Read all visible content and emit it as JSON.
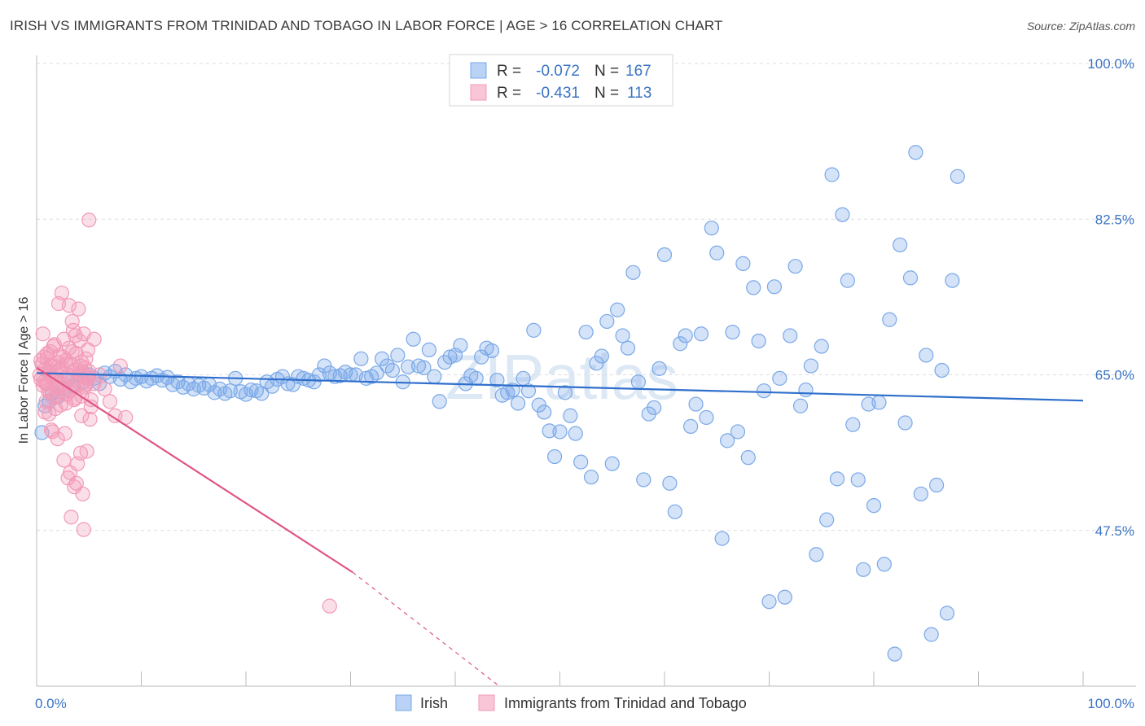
{
  "title": "IRISH VS IMMIGRANTS FROM TRINIDAD AND TOBAGO IN LABOR FORCE | AGE > 16 CORRELATION CHART",
  "source": "Source: ZipAtlas.com",
  "watermark": "ZIPatlas",
  "chart_data": {
    "type": "scatter",
    "ylabel": "In Labor Force | Age > 16",
    "xlim": [
      0,
      100
    ],
    "ylim": [
      30,
      100
    ],
    "x_tick_labels": {
      "min": "0.0%",
      "max": "100.0%"
    },
    "y_ticks": [
      {
        "value": 100.0,
        "label": "100.0%"
      },
      {
        "value": 82.5,
        "label": "82.5%"
      },
      {
        "value": 65.0,
        "label": "65.0%"
      },
      {
        "value": 47.5,
        "label": "47.5%"
      }
    ],
    "grid": "horizontal-dashed",
    "legend_position": "top-center",
    "stats": [
      {
        "r_label": "R =",
        "r": "-0.072",
        "n_label": "N =",
        "n": "167"
      },
      {
        "r_label": "R =",
        "r": "-0.431",
        "n_label": "N =",
        "n": "113"
      }
    ],
    "series": [
      {
        "name": "Irish",
        "color": "#7aa8e8",
        "line_color": "#2f6fcc",
        "trend": {
          "x0": 0,
          "y0": 65.2,
          "x1": 100,
          "y1": 62.1,
          "dash_from": null
        },
        "points": [
          [
            0.5,
            58.5
          ],
          [
            0.8,
            61.5
          ],
          [
            1.2,
            62.0
          ],
          [
            1.5,
            63.0
          ],
          [
            2.0,
            62.5
          ],
          [
            2.5,
            63.5
          ],
          [
            3.0,
            64.5
          ],
          [
            3.5,
            63.8
          ],
          [
            4.0,
            64.8
          ],
          [
            4.5,
            64.2
          ],
          [
            5.0,
            65.0
          ],
          [
            5.5,
            64.6
          ],
          [
            6.0,
            64.0
          ],
          [
            6.5,
            65.2
          ],
          [
            7.0,
            64.8
          ],
          [
            7.5,
            65.4
          ],
          [
            8.0,
            64.5
          ],
          [
            8.5,
            65.0
          ],
          [
            9.0,
            64.2
          ],
          [
            9.5,
            64.6
          ],
          [
            10.0,
            64.8
          ],
          [
            10.5,
            64.3
          ],
          [
            11.0,
            64.6
          ],
          [
            11.5,
            64.9
          ],
          [
            12.0,
            64.4
          ],
          [
            12.5,
            64.7
          ],
          [
            13.0,
            63.9
          ],
          [
            13.5,
            64.2
          ],
          [
            14.0,
            63.6
          ],
          [
            14.5,
            64.0
          ],
          [
            15.0,
            63.4
          ],
          [
            15.5,
            63.8
          ],
          [
            16.0,
            63.5
          ],
          [
            16.5,
            63.9
          ],
          [
            17.0,
            63.0
          ],
          [
            17.5,
            63.4
          ],
          [
            18.0,
            62.9
          ],
          [
            18.5,
            63.2
          ],
          [
            19.0,
            64.6
          ],
          [
            19.5,
            63.1
          ],
          [
            20.0,
            62.8
          ],
          [
            20.5,
            63.3
          ],
          [
            21.0,
            63.2
          ],
          [
            21.5,
            62.9
          ],
          [
            22.0,
            64.2
          ],
          [
            22.5,
            63.7
          ],
          [
            23.0,
            64.5
          ],
          [
            23.5,
            64.8
          ],
          [
            24.0,
            64.0
          ],
          [
            24.5,
            63.9
          ],
          [
            25.0,
            64.8
          ],
          [
            25.5,
            64.6
          ],
          [
            26.0,
            64.4
          ],
          [
            26.5,
            64.2
          ],
          [
            27.0,
            65.0
          ],
          [
            27.5,
            66.0
          ],
          [
            28.0,
            65.2
          ],
          [
            28.5,
            64.8
          ],
          [
            29.0,
            64.9
          ],
          [
            29.5,
            65.3
          ],
          [
            30.0,
            65.0
          ],
          [
            30.5,
            65.0
          ],
          [
            31.0,
            66.8
          ],
          [
            31.5,
            64.6
          ],
          [
            32.0,
            64.8
          ],
          [
            32.5,
            65.2
          ],
          [
            33.0,
            66.8
          ],
          [
            33.5,
            66.0
          ],
          [
            34.0,
            65.5
          ],
          [
            34.5,
            67.2
          ],
          [
            35.0,
            64.2
          ],
          [
            35.5,
            65.9
          ],
          [
            36.0,
            69.0
          ],
          [
            36.5,
            66.0
          ],
          [
            37.0,
            65.8
          ],
          [
            37.5,
            67.8
          ],
          [
            38.0,
            64.8
          ],
          [
            38.5,
            62.0
          ],
          [
            39.0,
            66.4
          ],
          [
            39.5,
            67.0
          ],
          [
            40.0,
            67.2
          ],
          [
            40.5,
            68.3
          ],
          [
            41.0,
            64.0
          ],
          [
            41.5,
            64.9
          ],
          [
            42.0,
            64.6
          ],
          [
            42.5,
            67.0
          ],
          [
            43.0,
            68.0
          ],
          [
            43.5,
            67.7
          ],
          [
            44.0,
            64.4
          ],
          [
            44.5,
            62.7
          ],
          [
            45.0,
            63.0
          ],
          [
            45.5,
            63.3
          ],
          [
            46.0,
            61.8
          ],
          [
            46.5,
            64.6
          ],
          [
            47.0,
            63.2
          ],
          [
            47.5,
            70.0
          ],
          [
            48.0,
            61.6
          ],
          [
            48.5,
            60.8
          ],
          [
            49.0,
            58.7
          ],
          [
            49.5,
            55.8
          ],
          [
            50.0,
            58.6
          ],
          [
            50.5,
            63.0
          ],
          [
            51.0,
            60.4
          ],
          [
            51.5,
            58.4
          ],
          [
            52.0,
            55.2
          ],
          [
            52.5,
            69.8
          ],
          [
            53.0,
            53.5
          ],
          [
            53.5,
            66.3
          ],
          [
            54.0,
            67.1
          ],
          [
            54.5,
            71.0
          ],
          [
            55.0,
            55.0
          ],
          [
            55.5,
            72.3
          ],
          [
            56.0,
            69.4
          ],
          [
            56.5,
            68.0
          ],
          [
            57.0,
            76.5
          ],
          [
            57.5,
            64.2
          ],
          [
            58.0,
            53.2
          ],
          [
            58.5,
            60.6
          ],
          [
            59.0,
            61.3
          ],
          [
            59.5,
            65.7
          ],
          [
            60.0,
            78.5
          ],
          [
            60.5,
            52.8
          ],
          [
            61.0,
            49.6
          ],
          [
            61.5,
            68.5
          ],
          [
            62.0,
            69.4
          ],
          [
            62.5,
            59.2
          ],
          [
            63.0,
            61.7
          ],
          [
            63.5,
            69.6
          ],
          [
            64.0,
            60.2
          ],
          [
            64.5,
            81.5
          ],
          [
            65.0,
            78.7
          ],
          [
            65.5,
            46.6
          ],
          [
            66.0,
            57.6
          ],
          [
            66.5,
            69.8
          ],
          [
            67.0,
            58.6
          ],
          [
            67.5,
            77.5
          ],
          [
            68.0,
            55.7
          ],
          [
            68.5,
            74.8
          ],
          [
            69.0,
            68.8
          ],
          [
            69.5,
            63.2
          ],
          [
            70.0,
            39.5
          ],
          [
            70.5,
            74.9
          ],
          [
            71.0,
            64.6
          ],
          [
            71.5,
            40.0
          ],
          [
            72.0,
            69.4
          ],
          [
            72.5,
            77.2
          ],
          [
            73.0,
            61.5
          ],
          [
            73.5,
            63.3
          ],
          [
            74.0,
            66.0
          ],
          [
            74.5,
            44.8
          ],
          [
            75.0,
            68.2
          ],
          [
            75.5,
            48.7
          ],
          [
            76.0,
            87.5
          ],
          [
            76.5,
            53.3
          ],
          [
            77.0,
            83.0
          ],
          [
            77.5,
            75.6
          ],
          [
            78.0,
            59.4
          ],
          [
            78.5,
            53.2
          ],
          [
            79.0,
            43.1
          ],
          [
            79.5,
            61.7
          ],
          [
            80.0,
            50.3
          ],
          [
            80.5,
            61.9
          ],
          [
            81.0,
            43.7
          ],
          [
            81.5,
            71.2
          ],
          [
            82.0,
            33.6
          ],
          [
            82.5,
            79.6
          ],
          [
            83.0,
            59.6
          ],
          [
            83.5,
            75.9
          ],
          [
            84.0,
            90.0
          ],
          [
            84.5,
            51.6
          ],
          [
            85.0,
            67.2
          ],
          [
            85.5,
            35.8
          ],
          [
            86.0,
            52.6
          ],
          [
            86.5,
            65.5
          ],
          [
            87.0,
            38.2
          ],
          [
            87.5,
            75.6
          ],
          [
            88.0,
            87.3
          ]
        ]
      },
      {
        "name": "Immigrants from Trinidad and Tobago",
        "color": "#f29ab8",
        "line_color": "#e05585",
        "trend": {
          "x0": 0,
          "y0": 65.8,
          "x1": 30.2,
          "y1": 42.8,
          "dash_to_x": 44.2,
          "dash_to_y": 30.0
        },
        "points": [
          [
            0.3,
            65.0
          ],
          [
            0.4,
            64.5
          ],
          [
            0.5,
            66.2
          ],
          [
            0.6,
            63.8
          ],
          [
            0.7,
            67.0
          ],
          [
            0.8,
            65.6
          ],
          [
            0.9,
            64.0
          ],
          [
            1.0,
            66.8
          ],
          [
            1.1,
            63.2
          ],
          [
            1.2,
            65.2
          ],
          [
            1.3,
            67.6
          ],
          [
            1.4,
            64.8
          ],
          [
            1.5,
            66.0
          ],
          [
            1.6,
            62.4
          ],
          [
            1.7,
            68.4
          ],
          [
            1.8,
            65.4
          ],
          [
            1.9,
            63.6
          ],
          [
            2.0,
            66.4
          ],
          [
            2.1,
            64.2
          ],
          [
            2.2,
            67.2
          ],
          [
            2.3,
            61.6
          ],
          [
            2.4,
            65.8
          ],
          [
            2.5,
            63.0
          ],
          [
            2.6,
            69.0
          ],
          [
            2.7,
            64.6
          ],
          [
            2.8,
            66.6
          ],
          [
            2.9,
            62.8
          ],
          [
            3.0,
            65.0
          ],
          [
            3.1,
            68.0
          ],
          [
            3.2,
            63.4
          ],
          [
            3.3,
            66.2
          ],
          [
            3.4,
            64.4
          ],
          [
            3.5,
            70.0
          ],
          [
            3.6,
            62.2
          ],
          [
            3.7,
            65.6
          ],
          [
            3.8,
            67.4
          ],
          [
            3.9,
            63.8
          ],
          [
            4.0,
            64.8
          ],
          [
            4.1,
            68.8
          ],
          [
            4.2,
            66.0
          ],
          [
            4.3,
            62.6
          ],
          [
            4.4,
            65.2
          ],
          [
            4.5,
            69.6
          ],
          [
            4.6,
            63.6
          ],
          [
            4.7,
            66.8
          ],
          [
            4.8,
            64.0
          ],
          [
            4.9,
            67.8
          ],
          [
            5.0,
            65.4
          ],
          [
            0.6,
            69.6
          ],
          [
            0.9,
            62.0
          ],
          [
            1.2,
            60.6
          ],
          [
            1.5,
            58.6
          ],
          [
            1.8,
            61.2
          ],
          [
            2.1,
            73.0
          ],
          [
            2.4,
            74.2
          ],
          [
            2.7,
            58.4
          ],
          [
            3.0,
            53.4
          ],
          [
            3.3,
            49.0
          ],
          [
            3.6,
            52.4
          ],
          [
            3.9,
            55.0
          ],
          [
            4.2,
            56.2
          ],
          [
            4.5,
            47.6
          ],
          [
            4.8,
            56.4
          ],
          [
            5.1,
            60.0
          ],
          [
            1.0,
            64.0
          ],
          [
            1.3,
            66.0
          ],
          [
            1.6,
            65.0
          ],
          [
            1.9,
            64.4
          ],
          [
            2.2,
            63.6
          ],
          [
            2.5,
            67.0
          ],
          [
            2.8,
            61.8
          ],
          [
            3.1,
            72.8
          ],
          [
            3.4,
            71.0
          ],
          [
            3.7,
            69.4
          ],
          [
            4.0,
            72.4
          ],
          [
            4.3,
            60.4
          ],
          [
            4.6,
            65.8
          ],
          [
            4.9,
            64.6
          ],
          [
            5.2,
            62.2
          ],
          [
            5.5,
            69.0
          ],
          [
            0.4,
            66.6
          ],
          [
            0.7,
            64.2
          ],
          [
            1.0,
            67.4
          ],
          [
            1.3,
            63.0
          ],
          [
            1.6,
            68.2
          ],
          [
            1.9,
            62.6
          ],
          [
            2.2,
            65.6
          ],
          [
            2.5,
            64.0
          ],
          [
            2.8,
            66.2
          ],
          [
            3.1,
            63.2
          ],
          [
            3.4,
            67.6
          ],
          [
            3.7,
            62.4
          ],
          [
            4.0,
            65.2
          ],
          [
            4.3,
            66.4
          ],
          [
            4.6,
            63.8
          ],
          [
            4.9,
            64.8
          ],
          [
            5.2,
            61.4
          ],
          [
            5.5,
            64.0
          ],
          [
            6.0,
            65.0
          ],
          [
            6.5,
            63.4
          ],
          [
            7.0,
            62.0
          ],
          [
            7.5,
            60.4
          ],
          [
            8.0,
            66.0
          ],
          [
            8.5,
            60.2
          ],
          [
            5.0,
            82.4
          ],
          [
            28.0,
            39.0
          ],
          [
            0.8,
            60.8
          ],
          [
            1.4,
            58.8
          ],
          [
            2.0,
            57.8
          ],
          [
            2.6,
            55.4
          ],
          [
            3.2,
            54.0
          ],
          [
            3.8,
            52.8
          ],
          [
            4.4,
            51.6
          ]
        ]
      }
    ]
  }
}
